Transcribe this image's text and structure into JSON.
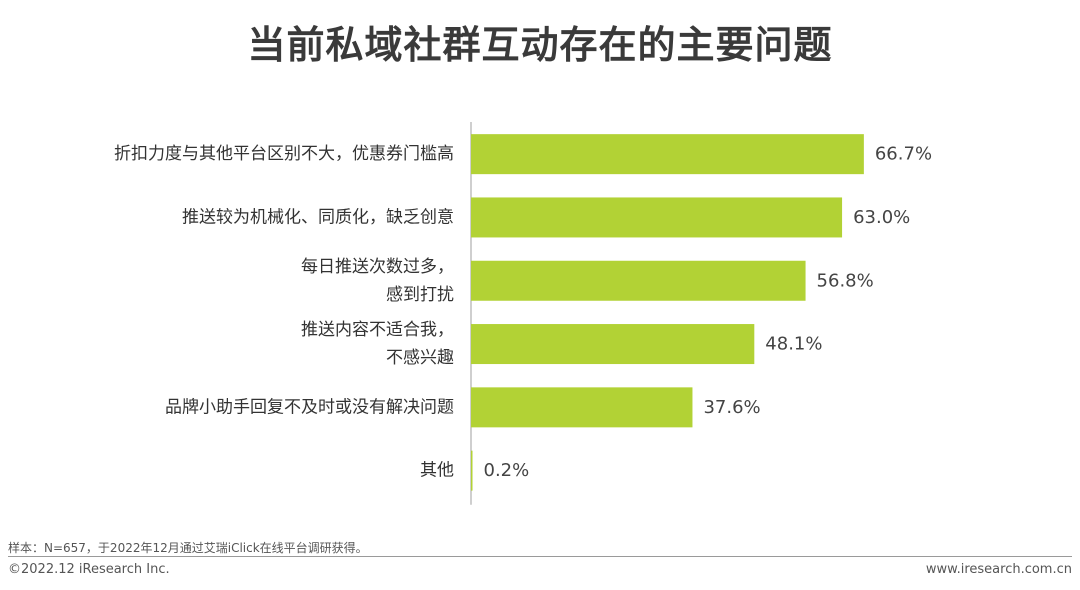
{
  "chart_data": {
    "type": "bar",
    "orientation": "horizontal",
    "title": "当前私域社群互动存在的主要问题",
    "categories": [
      [
        "折扣力度与其他平台区别不大，优惠券门槛高"
      ],
      [
        "推送较为机械化、同质化，缺乏创意"
      ],
      [
        "每日推送次数过多，",
        "感到打扰"
      ],
      [
        "推送内容不适合我，",
        "不感兴趣"
      ],
      [
        "品牌小助手回复不及时或没有解决问题"
      ],
      [
        "其他"
      ]
    ],
    "values": [
      66.7,
      63.0,
      56.8,
      48.1,
      37.6,
      0.2
    ],
    "value_labels": [
      "66.7%",
      "63.0%",
      "56.8%",
      "48.1%",
      "37.6%",
      "0.2%"
    ],
    "xlim": [
      0,
      100
    ],
    "grid": false,
    "bar_color": "#b2d235",
    "axis_color": "#bfbfbf"
  },
  "footer": {
    "note": "样本：N=657，于2022年12月通过艾瑞iClick在线平台调研获得。",
    "copyright": "©2022.12 iResearch Inc.",
    "website": "www.iresearch.com.cn"
  }
}
